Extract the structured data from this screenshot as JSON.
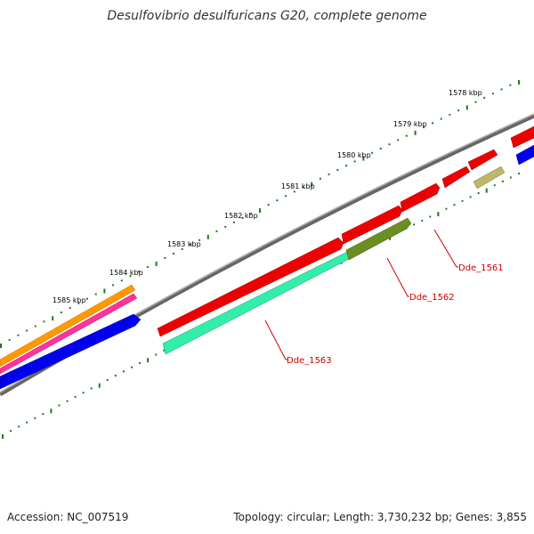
{
  "page_title": "Desulfovibrio desulfuricans G20, complete genome",
  "footer": {
    "accession": "Accession: NC_007519",
    "stats": "Topology: circular; Length: 3,730,232 bp; Genes: 3,855"
  },
  "scale_labels": [
    "1578 kbp",
    "1579 kbp",
    "1580 kbp",
    "1581 kbp",
    "1582 kbp",
    "1583 kbp",
    "1584 kbp",
    "1585 kbp"
  ],
  "gene_labels": [
    "Dde_1561",
    "Dde_1562",
    "Dde_1563"
  ],
  "colors": {
    "tick": "#1e7a1e",
    "backbone": "#808080",
    "cds_red": "#ee0000",
    "cds_olive": "#6b8e23",
    "cds_khaki": "#bdb76b",
    "cds_teal": "#33eeaa",
    "cds_blue": "#0000ee",
    "cds_orange": "#ff9900",
    "cds_pink": "#ff3399",
    "label": "#cc0000"
  }
}
